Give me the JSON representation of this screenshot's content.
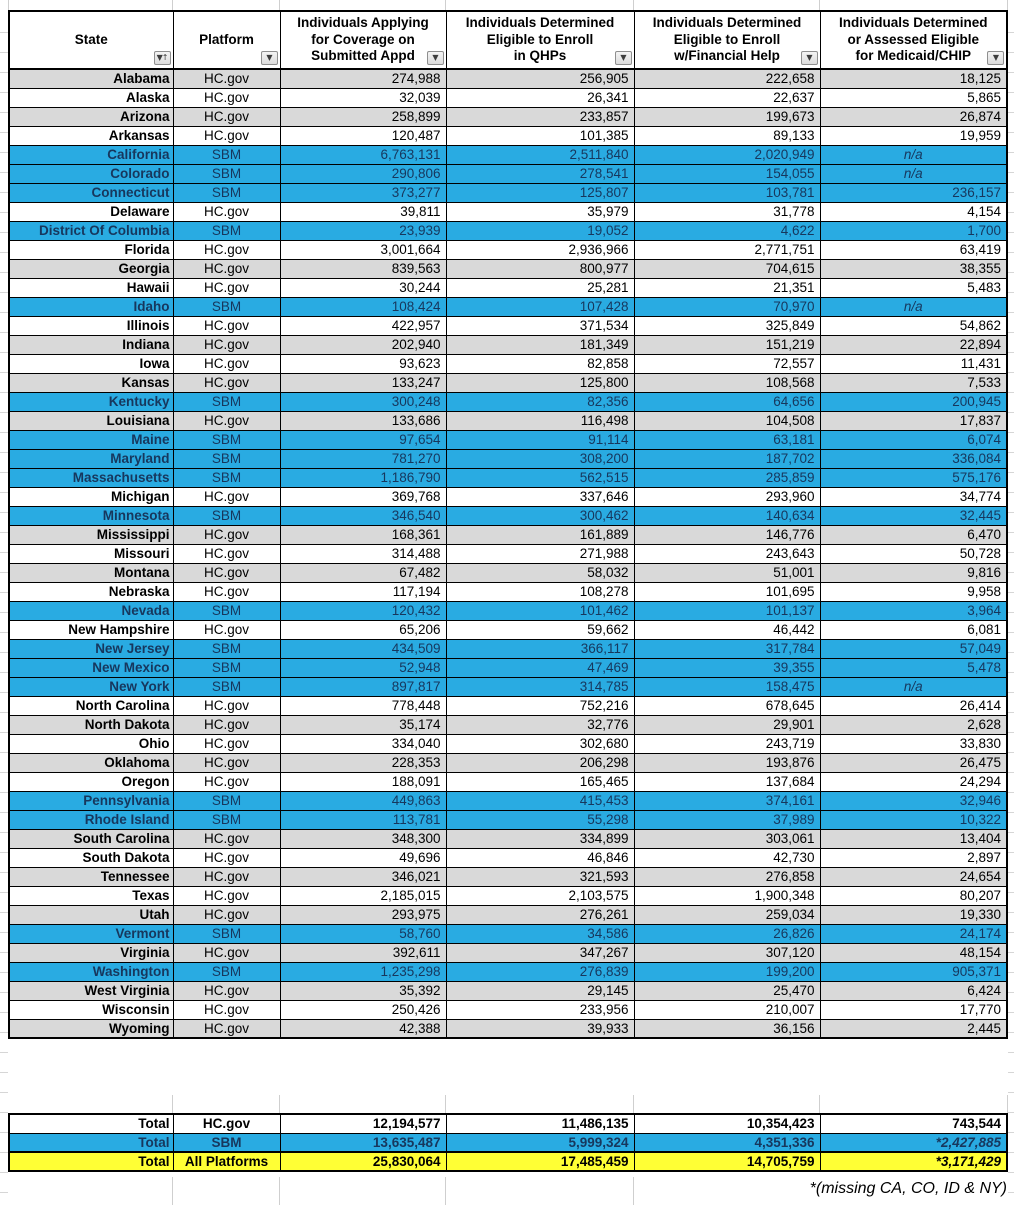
{
  "table": {
    "columns": [
      {
        "key": "state",
        "label": "State",
        "filter": "sort_ascending"
      },
      {
        "key": "platform",
        "label": "Platform",
        "filter": "filter_dropdown"
      },
      {
        "key": "applying",
        "label": "Individuals Applying\nfor Coverage on\nSubmitted Appd",
        "filter": "filter_dropdown"
      },
      {
        "key": "qhp",
        "label": "Individuals Determined\nEligible to Enroll\nin QHPs",
        "filter": "filter_dropdown"
      },
      {
        "key": "financial",
        "label": "Individuals Determined\nEligible to Enroll\nw/Financial Help",
        "filter": "filter_dropdown"
      },
      {
        "key": "medicaid",
        "label": "Individuals Determined\nor Assessed Eligible\nfor Medicaid/CHIP",
        "filter": "filter_dropdown"
      }
    ],
    "rows": [
      {
        "state": "Alabama",
        "platform": "HC.gov",
        "applying": "274,988",
        "qhp": "256,905",
        "financial": "222,658",
        "medicaid": "18,125",
        "bg": "gray"
      },
      {
        "state": "Alaska",
        "platform": "HC.gov",
        "applying": "32,039",
        "qhp": "26,341",
        "financial": "22,637",
        "medicaid": "5,865",
        "bg": "white"
      },
      {
        "state": "Arizona",
        "platform": "HC.gov",
        "applying": "258,899",
        "qhp": "233,857",
        "financial": "199,673",
        "medicaid": "26,874",
        "bg": "gray"
      },
      {
        "state": "Arkansas",
        "platform": "HC.gov",
        "applying": "120,487",
        "qhp": "101,385",
        "financial": "89,133",
        "medicaid": "19,959",
        "bg": "white"
      },
      {
        "state": "California",
        "platform": "SBM",
        "applying": "6,763,131",
        "qhp": "2,511,840",
        "financial": "2,020,949",
        "medicaid": "n/a",
        "bg": "blue"
      },
      {
        "state": "Colorado",
        "platform": "SBM",
        "applying": "290,806",
        "qhp": "278,541",
        "financial": "154,055",
        "medicaid": "n/a",
        "bg": "blue"
      },
      {
        "state": "Connecticut",
        "platform": "SBM",
        "applying": "373,277",
        "qhp": "125,807",
        "financial": "103,781",
        "medicaid": "236,157",
        "bg": "blue"
      },
      {
        "state": "Delaware",
        "platform": "HC.gov",
        "applying": "39,811",
        "qhp": "35,979",
        "financial": "31,778",
        "medicaid": "4,154",
        "bg": "white"
      },
      {
        "state": "District Of Columbia",
        "platform": "SBM",
        "applying": "23,939",
        "qhp": "19,052",
        "financial": "4,622",
        "medicaid": "1,700",
        "bg": "blue"
      },
      {
        "state": "Florida",
        "platform": "HC.gov",
        "applying": "3,001,664",
        "qhp": "2,936,966",
        "financial": "2,771,751",
        "medicaid": "63,419",
        "bg": "white"
      },
      {
        "state": "Georgia",
        "platform": "HC.gov",
        "applying": "839,563",
        "qhp": "800,977",
        "financial": "704,615",
        "medicaid": "38,355",
        "bg": "gray"
      },
      {
        "state": "Hawaii",
        "platform": "HC.gov",
        "applying": "30,244",
        "qhp": "25,281",
        "financial": "21,351",
        "medicaid": "5,483",
        "bg": "white"
      },
      {
        "state": "Idaho",
        "platform": "SBM",
        "applying": "108,424",
        "qhp": "107,428",
        "financial": "70,970",
        "medicaid": "n/a",
        "bg": "blue"
      },
      {
        "state": "Illinois",
        "platform": "HC.gov",
        "applying": "422,957",
        "qhp": "371,534",
        "financial": "325,849",
        "medicaid": "54,862",
        "bg": "white"
      },
      {
        "state": "Indiana",
        "platform": "HC.gov",
        "applying": "202,940",
        "qhp": "181,349",
        "financial": "151,219",
        "medicaid": "22,894",
        "bg": "gray"
      },
      {
        "state": "Iowa",
        "platform": "HC.gov",
        "applying": "93,623",
        "qhp": "82,858",
        "financial": "72,557",
        "medicaid": "11,431",
        "bg": "white"
      },
      {
        "state": "Kansas",
        "platform": "HC.gov",
        "applying": "133,247",
        "qhp": "125,800",
        "financial": "108,568",
        "medicaid": "7,533",
        "bg": "gray"
      },
      {
        "state": "Kentucky",
        "platform": "SBM",
        "applying": "300,248",
        "qhp": "82,356",
        "financial": "64,656",
        "medicaid": "200,945",
        "bg": "blue"
      },
      {
        "state": "Louisiana",
        "platform": "HC.gov",
        "applying": "133,686",
        "qhp": "116,498",
        "financial": "104,508",
        "medicaid": "17,837",
        "bg": "gray"
      },
      {
        "state": "Maine",
        "platform": "SBM",
        "applying": "97,654",
        "qhp": "91,114",
        "financial": "63,181",
        "medicaid": "6,074",
        "bg": "blue"
      },
      {
        "state": "Maryland",
        "platform": "SBM",
        "applying": "781,270",
        "qhp": "308,200",
        "financial": "187,702",
        "medicaid": "336,084",
        "bg": "blue"
      },
      {
        "state": "Massachusetts",
        "platform": "SBM",
        "applying": "1,186,790",
        "qhp": "562,515",
        "financial": "285,859",
        "medicaid": "575,176",
        "bg": "blue"
      },
      {
        "state": "Michigan",
        "platform": "HC.gov",
        "applying": "369,768",
        "qhp": "337,646",
        "financial": "293,960",
        "medicaid": "34,774",
        "bg": "white"
      },
      {
        "state": "Minnesota",
        "platform": "SBM",
        "applying": "346,540",
        "qhp": "300,462",
        "financial": "140,634",
        "medicaid": "32,445",
        "bg": "blue"
      },
      {
        "state": "Mississippi",
        "platform": "HC.gov",
        "applying": "168,361",
        "qhp": "161,889",
        "financial": "146,776",
        "medicaid": "6,470",
        "bg": "gray"
      },
      {
        "state": "Missouri",
        "platform": "HC.gov",
        "applying": "314,488",
        "qhp": "271,988",
        "financial": "243,643",
        "medicaid": "50,728",
        "bg": "white"
      },
      {
        "state": "Montana",
        "platform": "HC.gov",
        "applying": "67,482",
        "qhp": "58,032",
        "financial": "51,001",
        "medicaid": "9,816",
        "bg": "gray"
      },
      {
        "state": "Nebraska",
        "platform": "HC.gov",
        "applying": "117,194",
        "qhp": "108,278",
        "financial": "101,695",
        "medicaid": "9,958",
        "bg": "white"
      },
      {
        "state": "Nevada",
        "platform": "SBM",
        "applying": "120,432",
        "qhp": "101,462",
        "financial": "101,137",
        "medicaid": "3,964",
        "bg": "blue"
      },
      {
        "state": "New Hampshire",
        "platform": "HC.gov",
        "applying": "65,206",
        "qhp": "59,662",
        "financial": "46,442",
        "medicaid": "6,081",
        "bg": "white"
      },
      {
        "state": "New Jersey",
        "platform": "SBM",
        "applying": "434,509",
        "qhp": "366,117",
        "financial": "317,784",
        "medicaid": "57,049",
        "bg": "blue"
      },
      {
        "state": "New Mexico",
        "platform": "SBM",
        "applying": "52,948",
        "qhp": "47,469",
        "financial": "39,355",
        "medicaid": "5,478",
        "bg": "blue"
      },
      {
        "state": "New York",
        "platform": "SBM",
        "applying": "897,817",
        "qhp": "314,785",
        "financial": "158,475",
        "medicaid": "n/a",
        "bg": "blue"
      },
      {
        "state": "North Carolina",
        "platform": "HC.gov",
        "applying": "778,448",
        "qhp": "752,216",
        "financial": "678,645",
        "medicaid": "26,414",
        "bg": "white"
      },
      {
        "state": "North Dakota",
        "platform": "HC.gov",
        "applying": "35,174",
        "qhp": "32,776",
        "financial": "29,901",
        "medicaid": "2,628",
        "bg": "gray"
      },
      {
        "state": "Ohio",
        "platform": "HC.gov",
        "applying": "334,040",
        "qhp": "302,680",
        "financial": "243,719",
        "medicaid": "33,830",
        "bg": "white"
      },
      {
        "state": "Oklahoma",
        "platform": "HC.gov",
        "applying": "228,353",
        "qhp": "206,298",
        "financial": "193,876",
        "medicaid": "26,475",
        "bg": "gray"
      },
      {
        "state": "Oregon",
        "platform": "HC.gov",
        "applying": "188,091",
        "qhp": "165,465",
        "financial": "137,684",
        "medicaid": "24,294",
        "bg": "white"
      },
      {
        "state": "Pennsylvania",
        "platform": "SBM",
        "applying": "449,863",
        "qhp": "415,453",
        "financial": "374,161",
        "medicaid": "32,946",
        "bg": "blue"
      },
      {
        "state": "Rhode Island",
        "platform": "SBM",
        "applying": "113,781",
        "qhp": "55,298",
        "financial": "37,989",
        "medicaid": "10,322",
        "bg": "blue"
      },
      {
        "state": "South Carolina",
        "platform": "HC.gov",
        "applying": "348,300",
        "qhp": "334,899",
        "financial": "303,061",
        "medicaid": "13,404",
        "bg": "gray"
      },
      {
        "state": "South Dakota",
        "platform": "HC.gov",
        "applying": "49,696",
        "qhp": "46,846",
        "financial": "42,730",
        "medicaid": "2,897",
        "bg": "white"
      },
      {
        "state": "Tennessee",
        "platform": "HC.gov",
        "applying": "346,021",
        "qhp": "321,593",
        "financial": "276,858",
        "medicaid": "24,654",
        "bg": "gray"
      },
      {
        "state": "Texas",
        "platform": "HC.gov",
        "applying": "2,185,015",
        "qhp": "2,103,575",
        "financial": "1,900,348",
        "medicaid": "80,207",
        "bg": "white"
      },
      {
        "state": "Utah",
        "platform": "HC.gov",
        "applying": "293,975",
        "qhp": "276,261",
        "financial": "259,034",
        "medicaid": "19,330",
        "bg": "gray"
      },
      {
        "state": "Vermont",
        "platform": "SBM",
        "applying": "58,760",
        "qhp": "34,586",
        "financial": "26,826",
        "medicaid": "24,174",
        "bg": "blue"
      },
      {
        "state": "Virginia",
        "platform": "HC.gov",
        "applying": "392,611",
        "qhp": "347,267",
        "financial": "307,120",
        "medicaid": "48,154",
        "bg": "gray"
      },
      {
        "state": "Washington",
        "platform": "SBM",
        "applying": "1,235,298",
        "qhp": "276,839",
        "financial": "199,200",
        "medicaid": "905,371",
        "bg": "blue"
      },
      {
        "state": "West Virginia",
        "platform": "HC.gov",
        "applying": "35,392",
        "qhp": "29,145",
        "financial": "25,470",
        "medicaid": "6,424",
        "bg": "gray"
      },
      {
        "state": "Wisconsin",
        "platform": "HC.gov",
        "applying": "250,426",
        "qhp": "233,956",
        "financial": "210,007",
        "medicaid": "17,770",
        "bg": "white"
      },
      {
        "state": "Wyoming",
        "platform": "HC.gov",
        "applying": "42,388",
        "qhp": "39,933",
        "financial": "36,156",
        "medicaid": "2,445",
        "bg": "gray"
      }
    ],
    "totals": [
      {
        "state": "Total",
        "platform": "HC.gov",
        "applying": "12,194,577",
        "qhp": "11,486,135",
        "financial": "10,354,423",
        "medicaid": "743,544",
        "bg": "white"
      },
      {
        "state": "Total",
        "platform": "SBM",
        "applying": "13,635,487",
        "qhp": "5,999,324",
        "financial": "4,351,336",
        "medicaid": "*2,427,885",
        "bg": "blue"
      },
      {
        "state": "Total",
        "platform": "All Platforms",
        "applying": "25,830,064",
        "qhp": "17,485,459",
        "financial": "14,705,759",
        "medicaid": "*3,171,429",
        "bg": "yellow"
      }
    ],
    "footnote": "*(missing CA, CO, ID & NY)"
  },
  "icons": {
    "filter_dropdown": "▼",
    "sort_ascending": "▼↑"
  },
  "colors": {
    "sbm_row": "#29ABE2",
    "sbm_text": "#17375D",
    "gray_row": "#D9D9D9",
    "total_yellow": "#FFFF35",
    "border": "#000000"
  }
}
